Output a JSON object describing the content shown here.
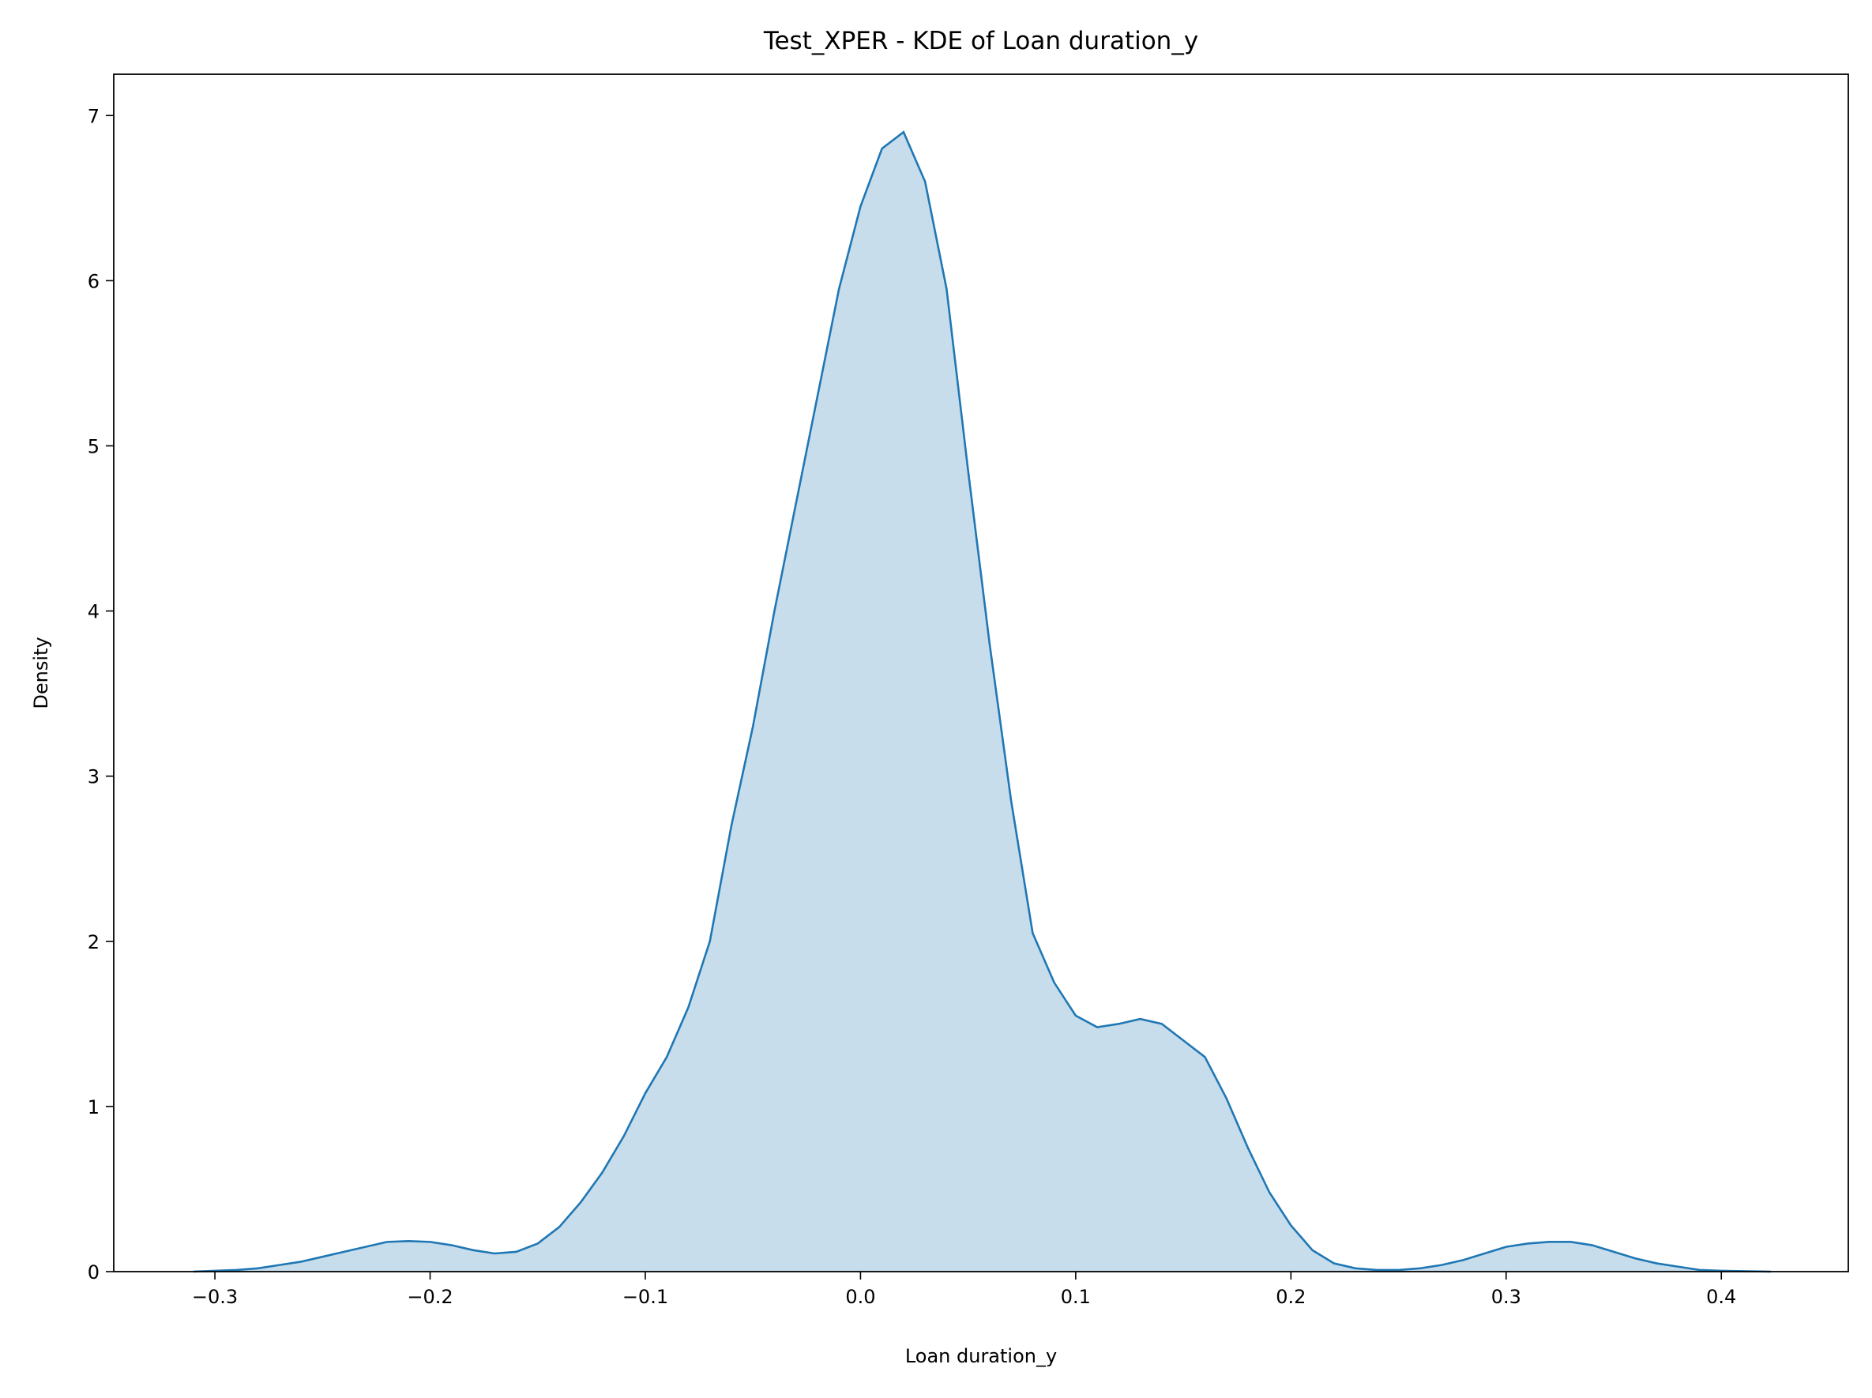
{
  "chart_data": {
    "type": "area",
    "title": "Test_XPER - KDE of Loan duration_y",
    "x_label": "Loan duration_y",
    "y_label": "Density",
    "x": [
      -0.31,
      -0.3,
      -0.29,
      -0.28,
      -0.27,
      -0.26,
      -0.25,
      -0.24,
      -0.23,
      -0.22,
      -0.21,
      -0.2,
      -0.19,
      -0.18,
      -0.17,
      -0.16,
      -0.15,
      -0.14,
      -0.13,
      -0.12,
      -0.11,
      -0.1,
      -0.09,
      -0.08,
      -0.07,
      -0.06,
      -0.05,
      -0.04,
      -0.03,
      -0.02,
      -0.01,
      0.0,
      0.01,
      0.02,
      0.03,
      0.04,
      0.05,
      0.06,
      0.07,
      0.08,
      0.09,
      0.1,
      0.11,
      0.12,
      0.13,
      0.14,
      0.15,
      0.16,
      0.17,
      0.18,
      0.19,
      0.2,
      0.21,
      0.22,
      0.23,
      0.24,
      0.25,
      0.26,
      0.27,
      0.28,
      0.29,
      0.3,
      0.31,
      0.32,
      0.33,
      0.34,
      0.35,
      0.36,
      0.37,
      0.38,
      0.39,
      0.4,
      0.423
    ],
    "series": [
      {
        "color": "#1f77b4",
        "fill_opacity": 0.25,
        "values": [
          0,
          0.005,
          0.01,
          0.02,
          0.04,
          0.06,
          0.09,
          0.12,
          0.15,
          0.18,
          0.185,
          0.18,
          0.16,
          0.13,
          0.11,
          0.12,
          0.17,
          0.27,
          0.42,
          0.6,
          0.82,
          1.08,
          1.3,
          1.6,
          2.0,
          2.7,
          3.3,
          4.0,
          4.65,
          5.3,
          5.95,
          6.45,
          6.8,
          6.9,
          6.6,
          5.95,
          4.85,
          3.8,
          2.85,
          2.05,
          1.75,
          1.55,
          1.48,
          1.5,
          1.53,
          1.5,
          1.4,
          1.3,
          1.05,
          0.75,
          0.48,
          0.28,
          0.13,
          0.05,
          0.02,
          0.01,
          0.01,
          0.02,
          0.04,
          0.07,
          0.11,
          0.15,
          0.17,
          0.18,
          0.18,
          0.16,
          0.12,
          0.08,
          0.05,
          0.03,
          0.01,
          0.005,
          0
        ]
      }
    ],
    "xlim": [
      -0.347,
      0.459
    ],
    "ylim": [
      0,
      7.25
    ],
    "xticks": [
      {
        "value": -0.3,
        "label": "−0.3"
      },
      {
        "value": -0.2,
        "label": "−0.2"
      },
      {
        "value": -0.1,
        "label": "−0.1"
      },
      {
        "value": 0,
        "label": "0.0"
      },
      {
        "value": 0.1,
        "label": "0.1"
      },
      {
        "value": 0.2,
        "label": "0.2"
      },
      {
        "value": 0.3,
        "label": "0.3"
      },
      {
        "value": 0.4,
        "label": "0.4"
      }
    ],
    "yticks": [
      0,
      1,
      2,
      3,
      4,
      5,
      6,
      7
    ]
  }
}
